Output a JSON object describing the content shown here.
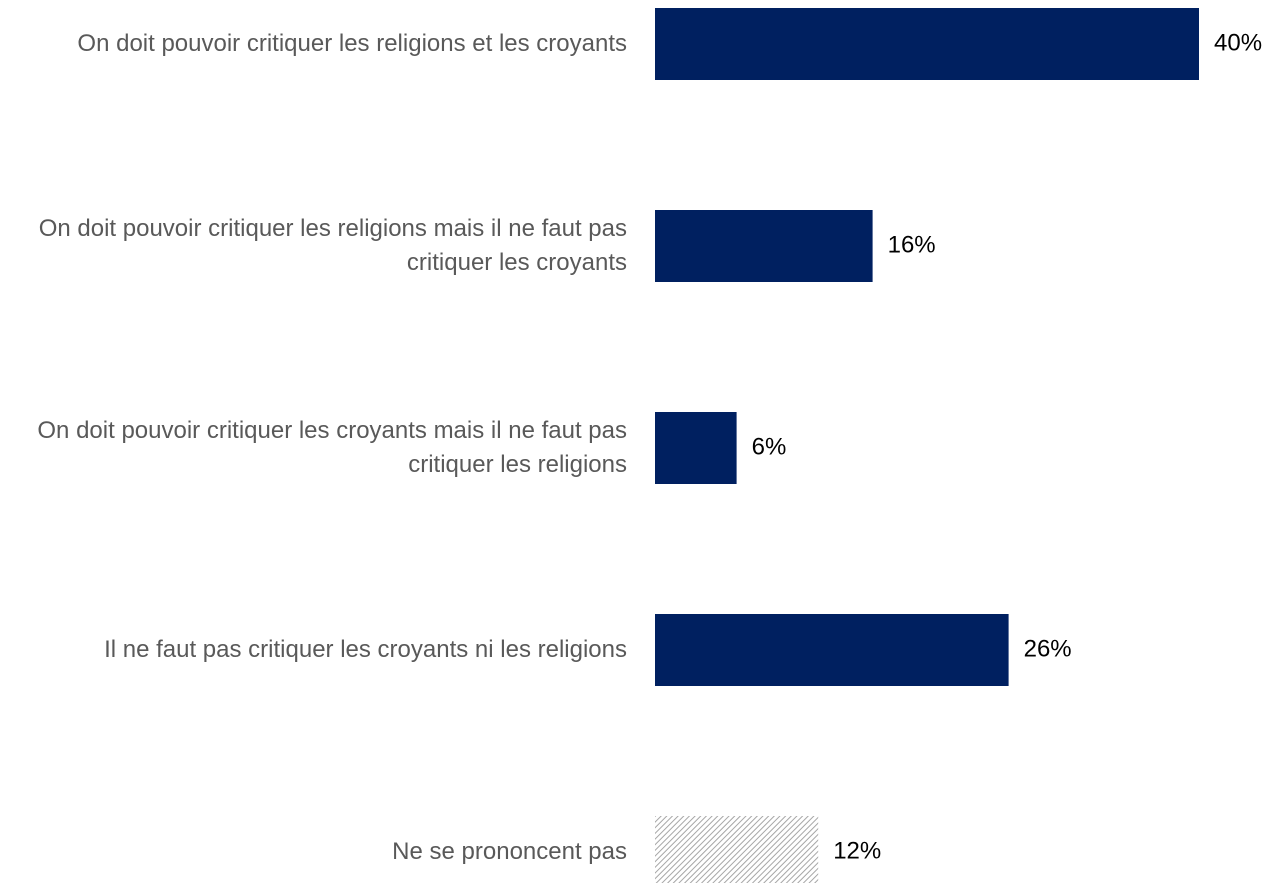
{
  "chart_data": {
    "type": "bar",
    "orientation": "horizontal",
    "categories": [
      "On doit pouvoir critiquer les religions et les croyants",
      "On doit pouvoir critiquer les religions mais il ne faut pas critiquer les croyants",
      "On doit pouvoir critiquer les croyants mais il ne faut pas critiquer les religions",
      "Il ne faut pas critiquer les croyants ni les religions",
      "Ne se prononcent pas"
    ],
    "values": [
      40,
      16,
      6,
      26,
      12
    ],
    "value_labels": [
      "40%",
      "16%",
      "6%",
      "26%",
      "12%"
    ],
    "colors": [
      "#002060",
      "#002060",
      "#002060",
      "#002060",
      "#a6a6a6"
    ],
    "hatched": [
      false,
      false,
      false,
      false,
      true
    ]
  }
}
